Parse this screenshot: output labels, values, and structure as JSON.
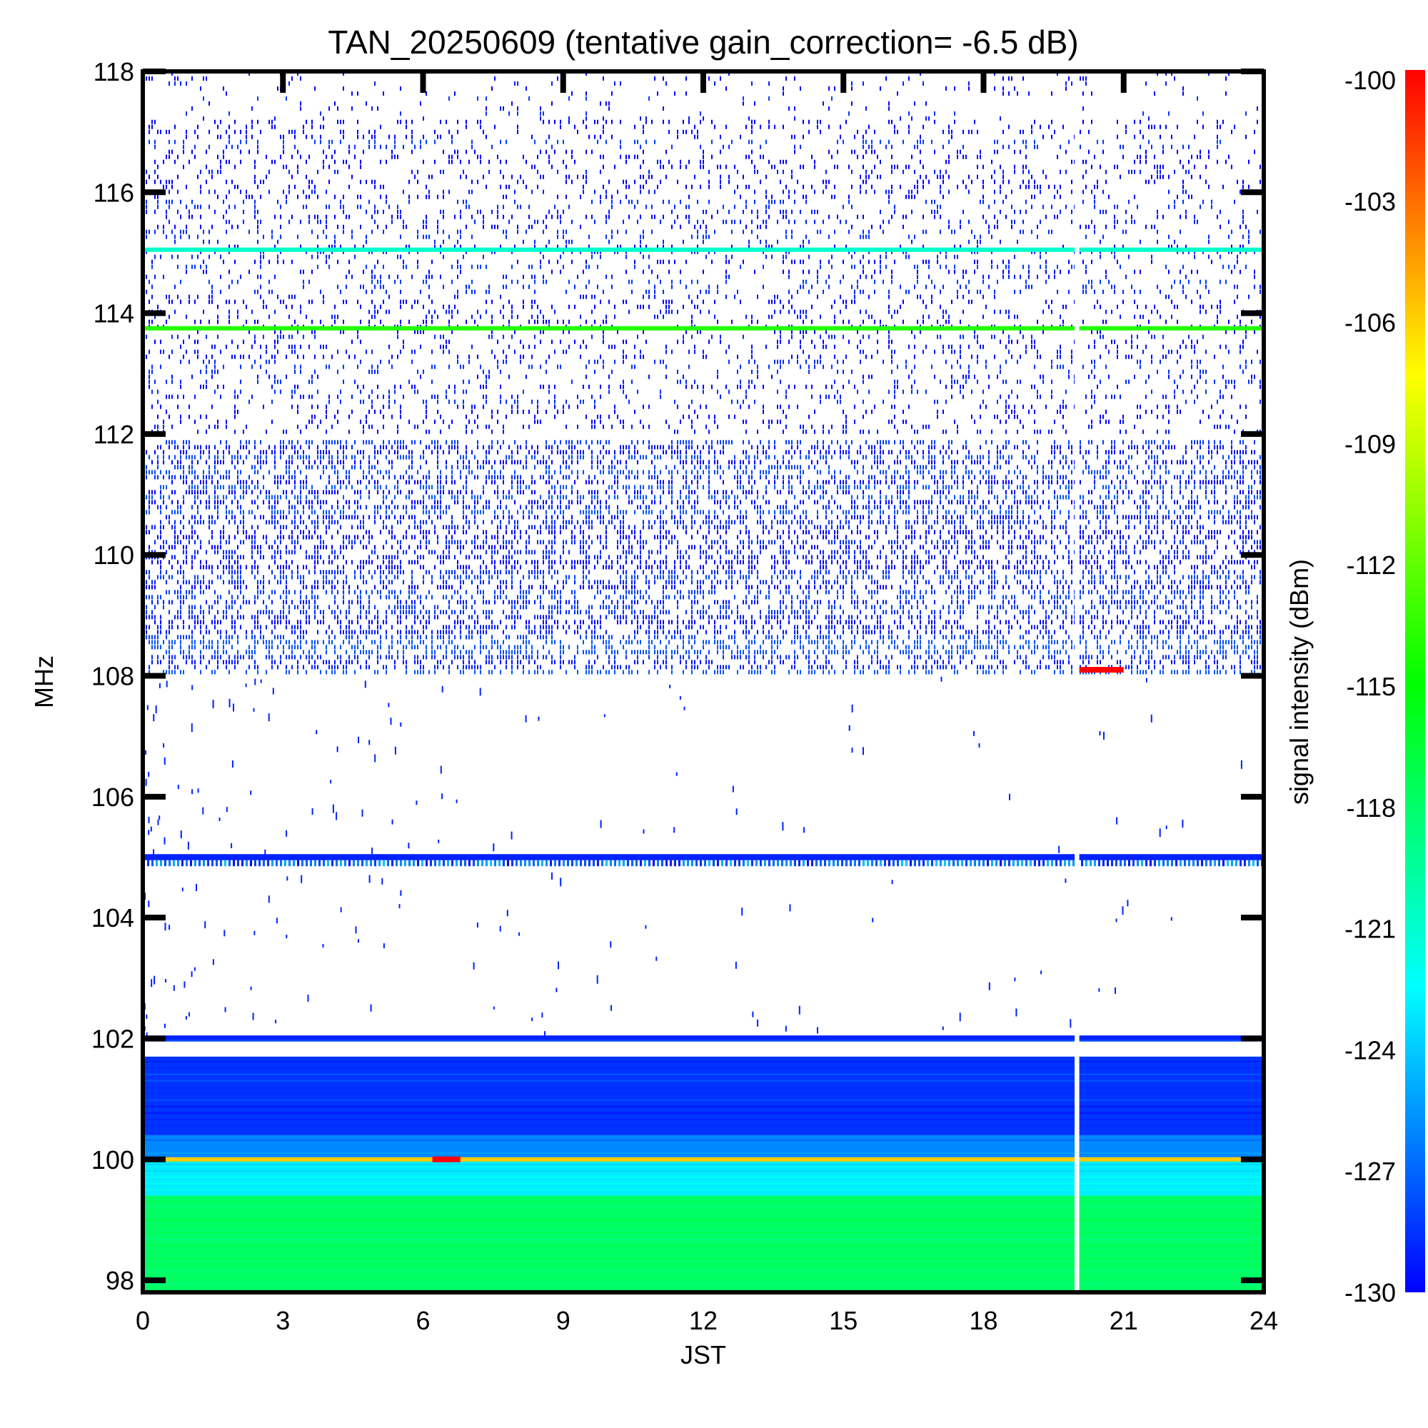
{
  "chart_data": {
    "type": "heatmap",
    "title": "TAN_20250609 (tentative gain_correction= -6.5 dB)",
    "xlabel": "JST",
    "ylabel": "MHz",
    "colorbar_label": "signal intensity (dBm)",
    "xlim": [
      0,
      24
    ],
    "ylim": [
      97.8,
      118
    ],
    "xticks": [
      0,
      3,
      6,
      9,
      12,
      15,
      18,
      21,
      24
    ],
    "yticks": [
      98,
      100,
      102,
      104,
      106,
      108,
      110,
      112,
      114,
      116,
      118
    ],
    "colorbar_range": [
      -130,
      -100
    ],
    "colorbar_ticks": [
      -100,
      -103,
      -106,
      -109,
      -112,
      -115,
      -118,
      -121,
      -124,
      -127,
      -130
    ],
    "colormap": [
      "#0000ff",
      "#0080ff",
      "#00ffff",
      "#00ff80",
      "#00ff00",
      "#80ff00",
      "#ffff00",
      "#ff8000",
      "#ff0000"
    ],
    "data_gap_jst": [
      19.95,
      20.05
    ],
    "bands": [
      {
        "name": "98.0-99.4 MHz",
        "freq": [
          97.8,
          99.4
        ],
        "level": -118,
        "style": "solid"
      },
      {
        "name": "99.4-100.0 MHz",
        "freq": [
          99.4,
          100.0
        ],
        "level": -123,
        "style": "solid"
      },
      {
        "name": "100.0-100.4 MHz",
        "freq": [
          100.0,
          100.4
        ],
        "level": -126,
        "style": "solid"
      },
      {
        "name": "100.4-101.7 MHz",
        "freq": [
          100.4,
          101.7
        ],
        "level": -128.5,
        "style": "solid"
      },
      {
        "name": "102 MHz",
        "freq": [
          101.95,
          102.05
        ],
        "level": -129,
        "style": "solid"
      },
      {
        "name": "105 MHz",
        "freq": [
          104.95,
          105.05
        ],
        "level": -129,
        "style": "solid"
      },
      {
        "name": "104.8-104.95 MHz",
        "freq": [
          104.85,
          104.95
        ],
        "level": -127,
        "style": "dashed"
      },
      {
        "name": "108-112 MHz",
        "freq": [
          108.05,
          111.9
        ],
        "level": -129,
        "style": "noise-dense"
      },
      {
        "name": "112-117.2 MHz",
        "freq": [
          112.0,
          117.2
        ],
        "level": -129.5,
        "style": "noise-sparse"
      },
      {
        "name": "117.2-118 MHz",
        "freq": [
          117.2,
          118.0
        ],
        "level": -129.5,
        "style": "noise-faint"
      }
    ],
    "lines": [
      {
        "name": "100 MHz",
        "freq": 100.0,
        "level": -106
      },
      {
        "name": "113.75 MHz",
        "freq": 113.75,
        "level": -114
      },
      {
        "name": "115.05 MHz",
        "freq": 115.05,
        "level": -121
      }
    ],
    "events": [
      {
        "name": "100 MHz burst",
        "freq": 100.0,
        "jst": [
          6.2,
          6.8
        ],
        "level": -100
      },
      {
        "name": "108.1 MHz burst",
        "freq": 108.1,
        "jst": [
          20.0,
          21.0
        ],
        "level": -100
      }
    ]
  }
}
